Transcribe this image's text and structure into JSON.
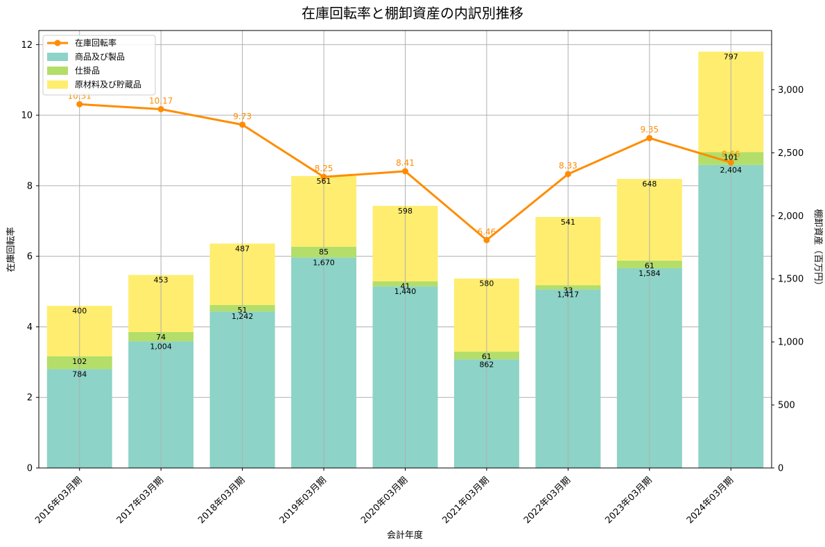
{
  "chart_data": {
    "type": "bar",
    "title": "在庫回転率と棚卸資産の内訳別推移",
    "xlabel": "会計年度",
    "ylabel_left": "在庫回転率",
    "ylabel_right": "棚卸資産（百万円）",
    "categories": [
      "2016年03月期",
      "2017年03月期",
      "2018年03月期",
      "2019年03月期",
      "2020年03月期",
      "2021年03月期",
      "2022年03月期",
      "2023年03月期",
      "2024年03月期"
    ],
    "stacked_series": [
      {
        "name": "商品及び製品",
        "color": "#8dd3c7",
        "values": [
          784,
          1004,
          1242,
          1670,
          1440,
          862,
          1417,
          1584,
          2404
        ]
      },
      {
        "name": "仕掛品",
        "color": "#b3de69",
        "values": [
          102,
          74,
          51,
          85,
          41,
          61,
          33,
          61,
          101
        ]
      },
      {
        "name": "原材料及び貯蔵品",
        "color": "#ffed6f",
        "values": [
          400,
          453,
          487,
          561,
          598,
          580,
          541,
          648,
          797
        ]
      }
    ],
    "line_series": {
      "name": "在庫回転率",
      "color": "#ff8c00",
      "values": [
        10.31,
        10.17,
        9.73,
        8.25,
        8.41,
        6.46,
        8.33,
        9.35,
        8.66
      ],
      "labels": [
        "10.31",
        "10.17",
        "9.73",
        "8.25",
        "8.41",
        "6.46",
        "8.33",
        "9.35",
        "8.66"
      ]
    },
    "ylim_left": [
      0,
      12.4
    ],
    "ylim_right": [
      0,
      3470
    ],
    "yticks_left": [
      "0",
      "2",
      "4",
      "6",
      "8",
      "10",
      "12"
    ],
    "yticks_left_values": [
      0,
      2,
      4,
      6,
      8,
      10,
      12
    ],
    "yticks_right": [
      "0",
      "500",
      "1,000",
      "1,500",
      "2,000",
      "2,500",
      "3,000"
    ],
    "yticks_right_values": [
      0,
      500,
      1000,
      1500,
      2000,
      2500,
      3000
    ],
    "grid": true,
    "legend_placement": "top-left"
  }
}
